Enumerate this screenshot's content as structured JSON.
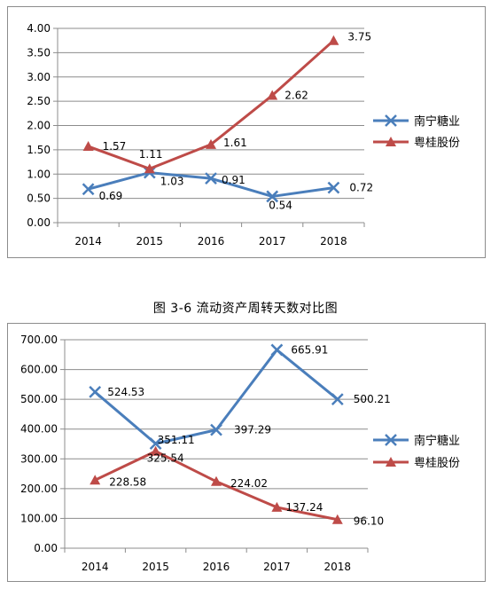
{
  "figure_caption": "图 3-6  流动资产周转天数对比图",
  "colors": {
    "nanning": "#4a7ebb",
    "yuegui": "#be4b48",
    "grid": "#8c8c8c",
    "axis": "#8c8c8c"
  },
  "chart_data": [
    {
      "type": "line",
      "title": "",
      "xlabel": "",
      "ylabel": "",
      "categories": [
        "2014",
        "2015",
        "2016",
        "2017",
        "2018"
      ],
      "ylim": [
        0,
        4
      ],
      "ystep": 0.5,
      "ytick_labels": [
        "0.00",
        "0.50",
        "1.00",
        "1.50",
        "2.00",
        "2.50",
        "3.00",
        "3.50",
        "4.00"
      ],
      "grid": true,
      "legend_position": "right",
      "series": [
        {
          "name": "南宁糖业",
          "marker": "x-icon",
          "values": [
            0.69,
            1.03,
            0.91,
            0.54,
            0.72
          ],
          "labels": [
            "0.69",
            "1.03",
            "0.91",
            "0.54",
            "0.72"
          ]
        },
        {
          "name": "粤桂股份",
          "marker": "triangle-icon",
          "values": [
            1.57,
            1.11,
            1.61,
            2.62,
            3.75
          ],
          "labels": [
            "1.57",
            "1.11",
            "1.61",
            "2.62",
            "3.75"
          ]
        }
      ]
    },
    {
      "type": "line",
      "title": "",
      "xlabel": "",
      "ylabel": "",
      "categories": [
        "2014",
        "2015",
        "2016",
        "2017",
        "2018"
      ],
      "ylim": [
        0,
        700
      ],
      "ystep": 100,
      "ytick_labels": [
        "0.00",
        "100.00",
        "200.00",
        "300.00",
        "400.00",
        "500.00",
        "600.00",
        "700.00"
      ],
      "grid": true,
      "legend_position": "right",
      "series": [
        {
          "name": "南宁糖业",
          "marker": "x-icon",
          "values": [
            524.53,
            351.11,
            397.29,
            665.91,
            500.21
          ],
          "labels": [
            "524.53",
            "351.11",
            "397.29",
            "665.91",
            "500.21"
          ]
        },
        {
          "name": "粤桂股份",
          "marker": "triangle-icon",
          "values": [
            228.58,
            325.54,
            224.02,
            137.24,
            96.1
          ],
          "labels": [
            "228.58",
            "325.54",
            "224.02",
            "137.24",
            "96.10"
          ]
        }
      ]
    }
  ]
}
